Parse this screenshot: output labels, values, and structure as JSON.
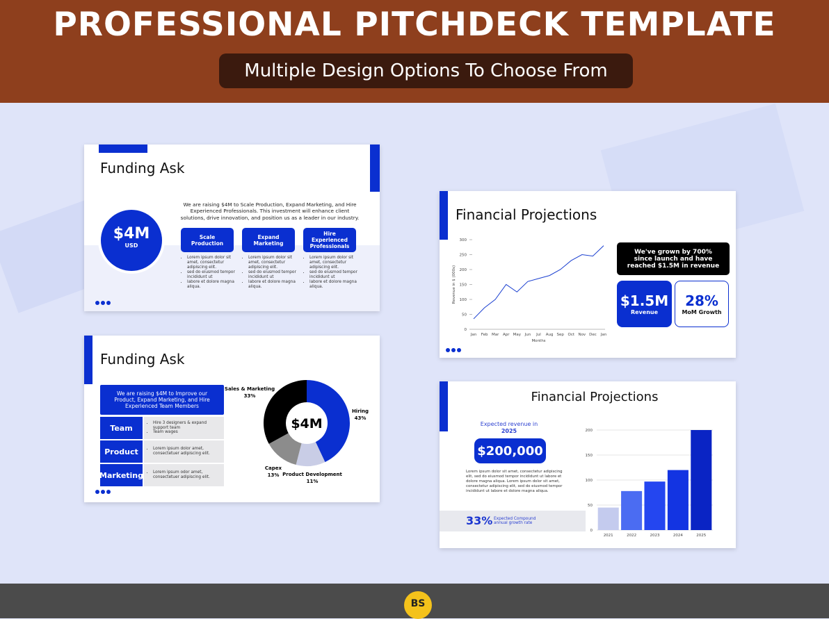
{
  "header": {
    "title": "PROFESSIONAL PITCHDECK TEMPLATE",
    "subtitle": "Multiple Design Options To Choose From"
  },
  "slides": [
    {
      "title": "Funding Ask",
      "amount": "$4M",
      "currency": "USD",
      "intro": "We are raising $4M to Scale Production, Expand Marketing, and Hire Experienced Professionals. This investment will enhance client solutions, drive innovation, and position us as a leader in our industry.",
      "columns": [
        {
          "heading": "Scale Production",
          "bullets": [
            "Lorem ipsum dolor sit amet, consectetur adipiscing elit.",
            "sed do eiusmod tempor incididunt ut",
            "labore et dolore magna aliqua."
          ]
        },
        {
          "heading": "Expand Marketing",
          "bullets": [
            "Lorem ipsum dolor sit amet, consectetur adipiscing elit.",
            "sed do eiusmod tempor incididunt ut",
            "labore et dolore magna aliqua."
          ]
        },
        {
          "heading": "Hire Experienced Professionals",
          "bullets": [
            "Lorem ipsum dolor sit amet, consectetur adipiscing elit.",
            "sed do eiusmod tempor incididunt ut",
            "labore et dolore magna aliqua."
          ]
        }
      ]
    },
    {
      "title": "Funding Ask",
      "intro": "We are raising $4M to Improve our Product, Expand Marketing, and Hire Experienced Team Members",
      "rows": [
        {
          "label": "Team",
          "bullets": [
            "Hire 3 designers & expand support team",
            "Team wages"
          ]
        },
        {
          "label": "Product",
          "bullets": [
            "Lorem ipsum dolor amet, consectetuer adipiscing elit."
          ]
        },
        {
          "label": "Marketing",
          "bullets": [
            "Lorem ipsum odor amet, consectetuer adipiscing elit."
          ]
        }
      ],
      "chart": {
        "type": "pie",
        "center_label": "$4M",
        "categories": [
          "Hiring",
          "Product Development",
          "Capex",
          "Sales & Marketing"
        ],
        "values": [
          43,
          11,
          13,
          33
        ],
        "value_labels": [
          "43%",
          "11%",
          "13%",
          "33%"
        ],
        "colors": [
          "#0a2fd0",
          "#c9cde6",
          "#8c8c8c",
          "#000000"
        ]
      }
    },
    {
      "title": "Financial Projections",
      "highlight": "We've grown by 700% since launch and have reached $1.5M in revenue",
      "stats": [
        {
          "value": "$1.5M",
          "label": "Revenue"
        },
        {
          "value": "28%",
          "label": "MoM Growth"
        }
      ],
      "chart": {
        "type": "line",
        "x_label": "Months",
        "y_label": "Revenue in $ (000s)",
        "categories": [
          "Jan",
          "Feb",
          "Mar",
          "Apr",
          "May",
          "Jun",
          "Jul",
          "Aug",
          "Sep",
          "Oct",
          "Nov",
          "Dec",
          "Jan"
        ],
        "values": [
          35,
          72,
          100,
          150,
          125,
          160,
          170,
          180,
          200,
          230,
          250,
          245,
          280
        ],
        "color": "#1a3fd0",
        "ylim": [
          0,
          300
        ],
        "yticks": [
          0,
          50,
          100,
          150,
          200,
          250,
          300
        ]
      }
    },
    {
      "title": "Financial Projections",
      "revenue_caption": "Expected revenue in",
      "revenue_year": "2025",
      "revenue": "$200,000",
      "body": "Lorem ipsum dolor sit amet, consectetur adipiscing elit, sed do eiusmod tempor incididunt ut labore et dolore magna aliqua. Lorem ipsum dolor sit amet, consectetur adipiscing elit, sed do eiusmod tempor incididunt ut labore et dolore magna aliqua.",
      "cagr": "33%",
      "cagr_label": "Expected Compound annual growth rate",
      "chart": {
        "type": "bar",
        "categories": [
          "2021",
          "2022",
          "2023",
          "2024",
          "2025"
        ],
        "values": [
          45,
          78,
          97,
          120,
          200
        ],
        "colors": [
          "#c4cbee",
          "#4b6cf2",
          "#2446f0",
          "#1334e2",
          "#0a24c4"
        ],
        "ylim": [
          0,
          200
        ],
        "yticks": [
          0,
          50,
          100,
          150,
          200
        ],
        "grid": true
      }
    }
  ],
  "footer": {
    "logo": "BS"
  }
}
